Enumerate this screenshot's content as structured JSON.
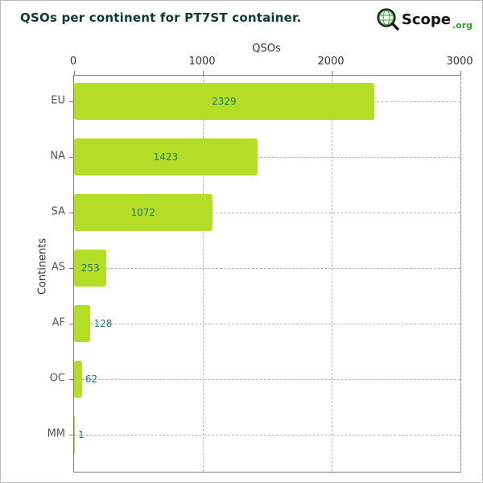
{
  "header": {
    "logo": {
      "scope_text": "Scope",
      "org_text": ".org"
    }
  },
  "chart_data": {
    "type": "bar",
    "orientation": "horizontal",
    "title": "QSOs per continent for PT7ST container.",
    "xlabel": "QSOs",
    "ylabel": "Continents",
    "categories": [
      "EU",
      "NA",
      "SA",
      "AS",
      "AF",
      "OC",
      "MM"
    ],
    "values": [
      2329,
      1423,
      1072,
      253,
      128,
      62,
      1
    ],
    "xlim": [
      0,
      3000
    ],
    "xticks": [
      0,
      1000,
      2000,
      3000
    ],
    "grid": true,
    "legend": "none",
    "bar_color": "#b4dd26",
    "value_label_color": "#1f7a6e",
    "title_color": "#0b3b33"
  }
}
